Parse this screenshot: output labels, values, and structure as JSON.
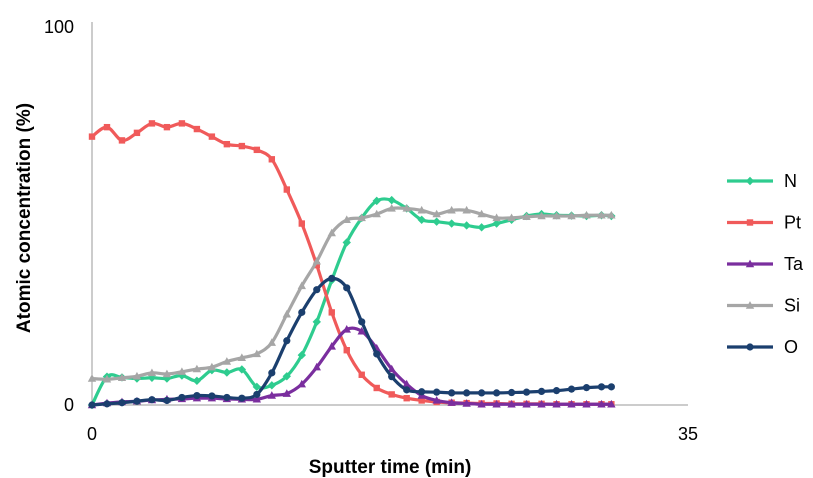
{
  "chart_data": {
    "type": "line",
    "title": "",
    "xlabel": "Sputter time (min)",
    "ylabel": "Atomic concentration (%)",
    "xlim": [
      0,
      35
    ],
    "ylim": [
      0,
      100
    ],
    "x_tick_labels": [
      "0",
      "35"
    ],
    "y_tick_labels": [
      "0",
      "100"
    ],
    "grid": false,
    "legend_position": "right",
    "x": [
      0,
      0.88,
      1.76,
      2.64,
      3.52,
      4.4,
      5.28,
      6.16,
      7.04,
      7.92,
      8.8,
      9.68,
      10.56,
      11.44,
      12.32,
      13.2,
      14.08,
      14.96,
      15.84,
      16.72,
      17.6,
      18.48,
      19.36,
      20.24,
      21.12,
      22.0,
      22.88,
      23.76,
      24.64,
      25.52,
      26.4,
      27.28,
      28.16,
      29.04,
      29.92,
      30.5
    ],
    "series": [
      {
        "name": "N",
        "color": "#2ecc8f",
        "marker": "diamond",
        "values": [
          0,
          7.5,
          7.3,
          7.0,
          7.2,
          7.0,
          7.8,
          6.4,
          9.2,
          8.6,
          9.4,
          4.8,
          5.2,
          7.6,
          13.2,
          22.0,
          33.0,
          43.0,
          49.5,
          54.0,
          54.2,
          52.0,
          49.0,
          48.5,
          48.0,
          47.5,
          47.0,
          48.0,
          49.0,
          50.0,
          50.5,
          50.2,
          50.1,
          50.0,
          50.2,
          50.0
        ]
      },
      {
        "name": "Pt",
        "color": "#f05a5a",
        "marker": "square",
        "values": [
          71.0,
          73.5,
          70.0,
          72.0,
          74.5,
          73.5,
          74.5,
          73.0,
          71.0,
          69.0,
          68.5,
          67.5,
          65.0,
          57.0,
          48.0,
          37.0,
          24.5,
          14.5,
          8.0,
          4.5,
          2.8,
          1.8,
          1.2,
          0.8,
          0.6,
          0.5,
          0.4,
          0.4,
          0.3,
          0.3,
          0.3,
          0.2,
          0.2,
          0.2,
          0.2,
          0.2
        ]
      },
      {
        "name": "Ta",
        "color": "#7a2e9e",
        "marker": "triangle",
        "values": [
          0,
          0.5,
          0.8,
          1.0,
          1.3,
          1.5,
          1.6,
          1.8,
          1.8,
          1.6,
          1.5,
          1.5,
          2.5,
          3.0,
          5.5,
          10.0,
          15.5,
          20.0,
          19.5,
          15.0,
          9.5,
          5.5,
          2.5,
          1.2,
          0.6,
          0.4,
          0.2,
          0.2,
          0.2,
          0.2,
          0.2,
          0.2,
          0.2,
          0.2,
          0.2,
          0.2
        ]
      },
      {
        "name": "Si",
        "color": "#a6a6a6",
        "marker": "triangle",
        "values": [
          7.0,
          6.8,
          7.2,
          7.6,
          8.5,
          8.2,
          8.8,
          9.5,
          10.0,
          11.5,
          12.5,
          13.5,
          16.5,
          24.0,
          31.5,
          38.0,
          45.5,
          49.0,
          49.5,
          50.5,
          52.0,
          52.0,
          51.5,
          50.5,
          51.5,
          51.5,
          50.5,
          49.5,
          49.5,
          49.8,
          50.0,
          50.0,
          50.0,
          50.2,
          50.2,
          50.2
        ]
      },
      {
        "name": "O",
        "color": "#1b3f6e",
        "marker": "circle",
        "values": [
          0,
          0.3,
          0.6,
          1.0,
          1.4,
          1.2,
          2.0,
          2.5,
          2.4,
          2.0,
          1.8,
          2.8,
          8.5,
          17.0,
          24.5,
          30.5,
          33.5,
          31.0,
          22.0,
          13.5,
          7.5,
          4.0,
          3.5,
          3.4,
          3.2,
          3.2,
          3.2,
          3.2,
          3.3,
          3.4,
          3.6,
          3.8,
          4.2,
          4.6,
          4.8,
          4.8
        ]
      }
    ]
  }
}
